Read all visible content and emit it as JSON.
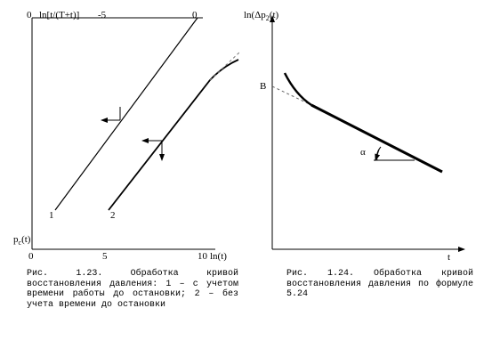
{
  "figure_left": {
    "top_axis": {
      "origin": "0",
      "label": "ln[t/(T+t)]",
      "tick_mid": "-5",
      "tick_end": "0"
    },
    "bottom_axis": {
      "y_label": {
        "base": "p",
        "sub": "c",
        "rest": "(t)"
      },
      "origin": "0",
      "tick_mid": "5",
      "tick_end": "10",
      "label": "ln(t)"
    },
    "curves": [
      "1",
      "2"
    ],
    "caption": "Рис. 1.23. Обработка кривой восстановления давления: 1 – с учетом времени работы до остановки; 2 – без учета времени до остановки"
  },
  "figure_right": {
    "y_label": {
      "base": "ln(Δp",
      "sub": "2",
      "rest": "(t)"
    },
    "x_label": "t",
    "point": "B",
    "angle": "α",
    "caption": "Рис. 1.24. Обработка кривой восстановления давления по формуле 5.24"
  }
}
